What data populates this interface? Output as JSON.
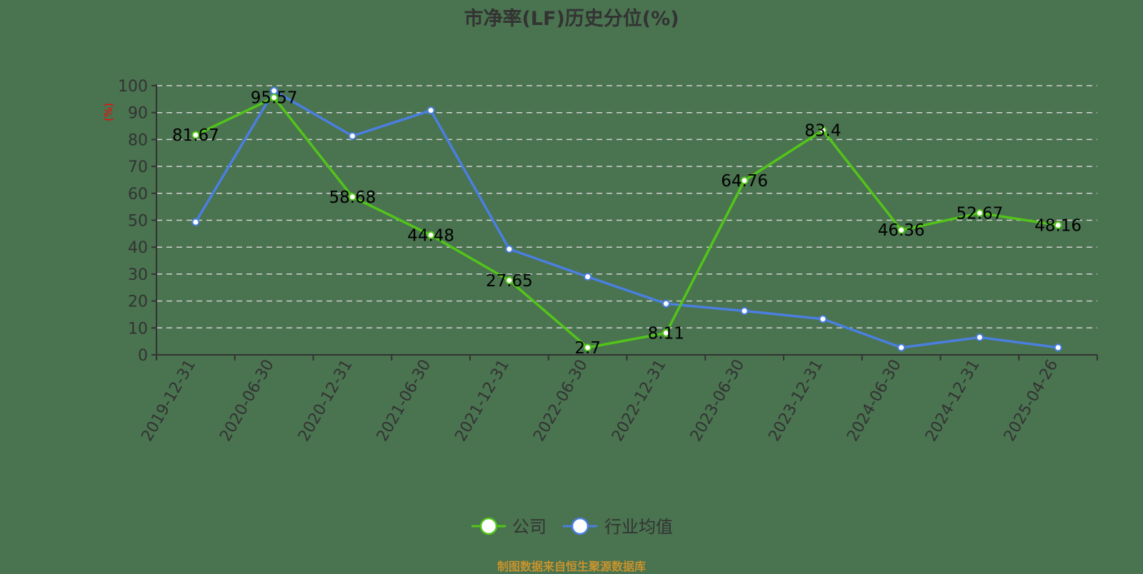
{
  "title": "市净率(LF)历史分位(%)",
  "source": "制图数据来自恒生聚源数据库",
  "colors": {
    "background": "#4a7350",
    "company": "#52c41a",
    "industry": "#4a7fe0",
    "grid": "#d0d0d0",
    "axis": "#333333",
    "ylabel": "#ff0000",
    "source": "#c8932d"
  },
  "chart_data": {
    "type": "line",
    "title": "市净率(LF)历史分位(%)",
    "xlabel": "",
    "ylabel": "(%)",
    "ylim": [
      0,
      100
    ],
    "yticks": [
      0,
      10,
      20,
      30,
      40,
      50,
      60,
      70,
      80,
      90,
      100
    ],
    "grid": true,
    "legend_position": "bottom",
    "categories": [
      "2019-12-31",
      "2020-06-30",
      "2020-12-31",
      "2021-06-30",
      "2021-12-31",
      "2022-06-30",
      "2022-12-31",
      "2023-06-30",
      "2023-12-31",
      "2024-06-30",
      "2024-12-31",
      "2025-04-26"
    ],
    "series": [
      {
        "name": "公司",
        "values": [
          81.67,
          95.57,
          58.68,
          44.48,
          27.65,
          2.7,
          8.11,
          64.76,
          83.4,
          46.36,
          52.67,
          48.16
        ],
        "labels": [
          "81.67",
          "95.57",
          "58.68",
          "44.48",
          "27.65",
          "2.7",
          "8.11",
          "64.76",
          "83.4",
          "46.36",
          "52.67",
          "48.16"
        ]
      },
      {
        "name": "行业均值",
        "values": [
          49.3,
          98.1,
          81.3,
          90.8,
          39.3,
          29.0,
          19.0,
          16.3,
          13.3,
          2.7,
          6.5,
          2.7
        ]
      }
    ]
  },
  "legend": [
    {
      "label": "公司"
    },
    {
      "label": "行业均值"
    }
  ]
}
